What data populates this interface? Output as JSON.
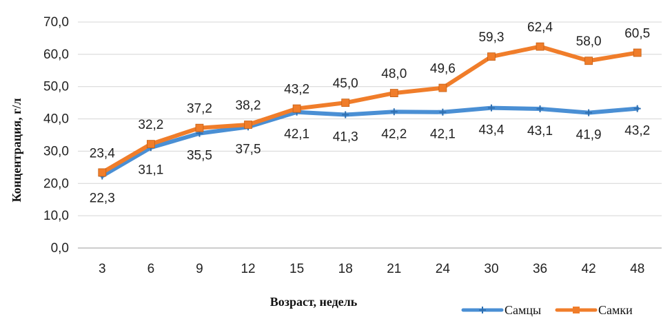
{
  "chart_data": {
    "type": "line",
    "title": "",
    "xlabel": "Возраст,  недель",
    "ylabel": "Концентрация, г/л",
    "categories": [
      "3",
      "6",
      "9",
      "12",
      "15",
      "18",
      "21",
      "24",
      "30",
      "36",
      "42",
      "48"
    ],
    "ylim": [
      0,
      70
    ],
    "y_ticks": [
      "0,0",
      "10,0",
      "20,0",
      "30,0",
      "40,0",
      "50,0",
      "60,0",
      "70,0"
    ],
    "grid": true,
    "legend_position": "bottom-right",
    "series": [
      {
        "name": "Самцы",
        "color": "#4a8fd4",
        "marker": "cross",
        "values": [
          22.3,
          31.1,
          35.5,
          37.5,
          42.1,
          41.3,
          42.2,
          42.1,
          43.4,
          43.1,
          41.9,
          43.2
        ],
        "labels": [
          "22,3",
          "31,1",
          "35,5",
          "37,5",
          "42,1",
          "41,3",
          "42,2",
          "42,1",
          "43,4",
          "43,1",
          "41,9",
          "43,2"
        ]
      },
      {
        "name": "Самки",
        "color": "#f07d2a",
        "marker": "square",
        "values": [
          23.4,
          32.2,
          37.2,
          38.2,
          43.2,
          45.0,
          48.0,
          49.6,
          59.3,
          62.4,
          58.0,
          60.5
        ],
        "labels": [
          "23,4",
          "32,2",
          "37,2",
          "38,2",
          "43,2",
          "45,0",
          "48,0",
          "49,6",
          "59,3",
          "62,4",
          "58,0",
          "60,5"
        ]
      }
    ]
  }
}
